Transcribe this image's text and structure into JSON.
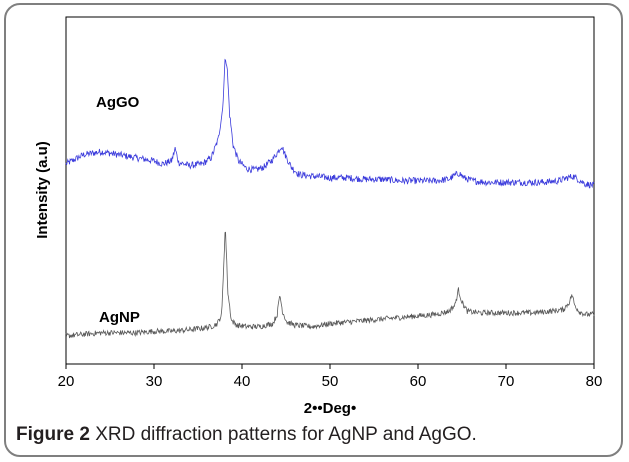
{
  "caption": {
    "label": "Figure 2",
    "text": "XRD diffraction patterns for AgNP and AgGO."
  },
  "chart_data": {
    "type": "line",
    "title": "",
    "xlabel": "2••Deg•",
    "ylabel": "Intensity (a.u)",
    "xlim": [
      20,
      80
    ],
    "xticks": [
      20,
      30,
      40,
      50,
      60,
      70,
      80
    ],
    "yticks_shown": false,
    "grid": false,
    "legend": "none",
    "series": [
      {
        "name": "AgGO",
        "color": "#3c3cdc",
        "x": [
          20,
          22,
          24,
          26,
          28,
          30,
          31,
          32,
          32.4,
          32.8,
          34,
          35.5,
          36.5,
          37.3,
          37.8,
          38.1,
          38.3,
          38.6,
          39,
          39.6,
          40.5,
          41.5,
          42.5,
          43.5,
          44.1,
          44.5,
          44.9,
          45.6,
          46.5,
          48,
          50,
          52,
          54,
          56,
          58,
          60,
          62,
          63.5,
          64.3,
          64.7,
          65.2,
          66.2,
          68,
          70,
          72,
          74,
          76,
          77,
          77.6,
          78.2,
          79,
          80
        ],
        "y": [
          0.58,
          0.61,
          0.62,
          0.61,
          0.6,
          0.59,
          0.58,
          0.59,
          0.63,
          0.585,
          0.575,
          0.58,
          0.6,
          0.66,
          0.76,
          0.93,
          0.9,
          0.74,
          0.64,
          0.59,
          0.565,
          0.56,
          0.57,
          0.595,
          0.62,
          0.64,
          0.61,
          0.57,
          0.545,
          0.54,
          0.535,
          0.535,
          0.53,
          0.53,
          0.525,
          0.525,
          0.525,
          0.53,
          0.545,
          0.55,
          0.535,
          0.525,
          0.52,
          0.52,
          0.52,
          0.52,
          0.525,
          0.535,
          0.54,
          0.53,
          0.515,
          0.51
        ]
      },
      {
        "name": "AgNP",
        "color": "#5a5a5a",
        "x": [
          20,
          22,
          24,
          26,
          28,
          30,
          32,
          34,
          35.5,
          36.5,
          37.2,
          37.7,
          38.1,
          38.4,
          38.8,
          39.4,
          40.5,
          42,
          43.5,
          44.0,
          44.3,
          44.6,
          45.1,
          46,
          48,
          50,
          52,
          54,
          56,
          58,
          60,
          62,
          63.5,
          64.2,
          64.6,
          65.0,
          65.6,
          67,
          69,
          71,
          73,
          75,
          76.5,
          77.2,
          77.5,
          77.8,
          78.3,
          79,
          80
        ],
        "y": [
          0.02,
          0.025,
          0.03,
          0.03,
          0.03,
          0.035,
          0.035,
          0.04,
          0.045,
          0.05,
          0.06,
          0.09,
          0.38,
          0.16,
          0.07,
          0.055,
          0.05,
          0.05,
          0.06,
          0.09,
          0.155,
          0.1,
          0.065,
          0.055,
          0.05,
          0.06,
          0.065,
          0.07,
          0.075,
          0.08,
          0.085,
          0.09,
          0.1,
          0.12,
          0.17,
          0.13,
          0.1,
          0.095,
          0.095,
          0.095,
          0.095,
          0.1,
          0.105,
          0.13,
          0.155,
          0.12,
          0.1,
          0.09,
          0.09
        ]
      }
    ]
  }
}
